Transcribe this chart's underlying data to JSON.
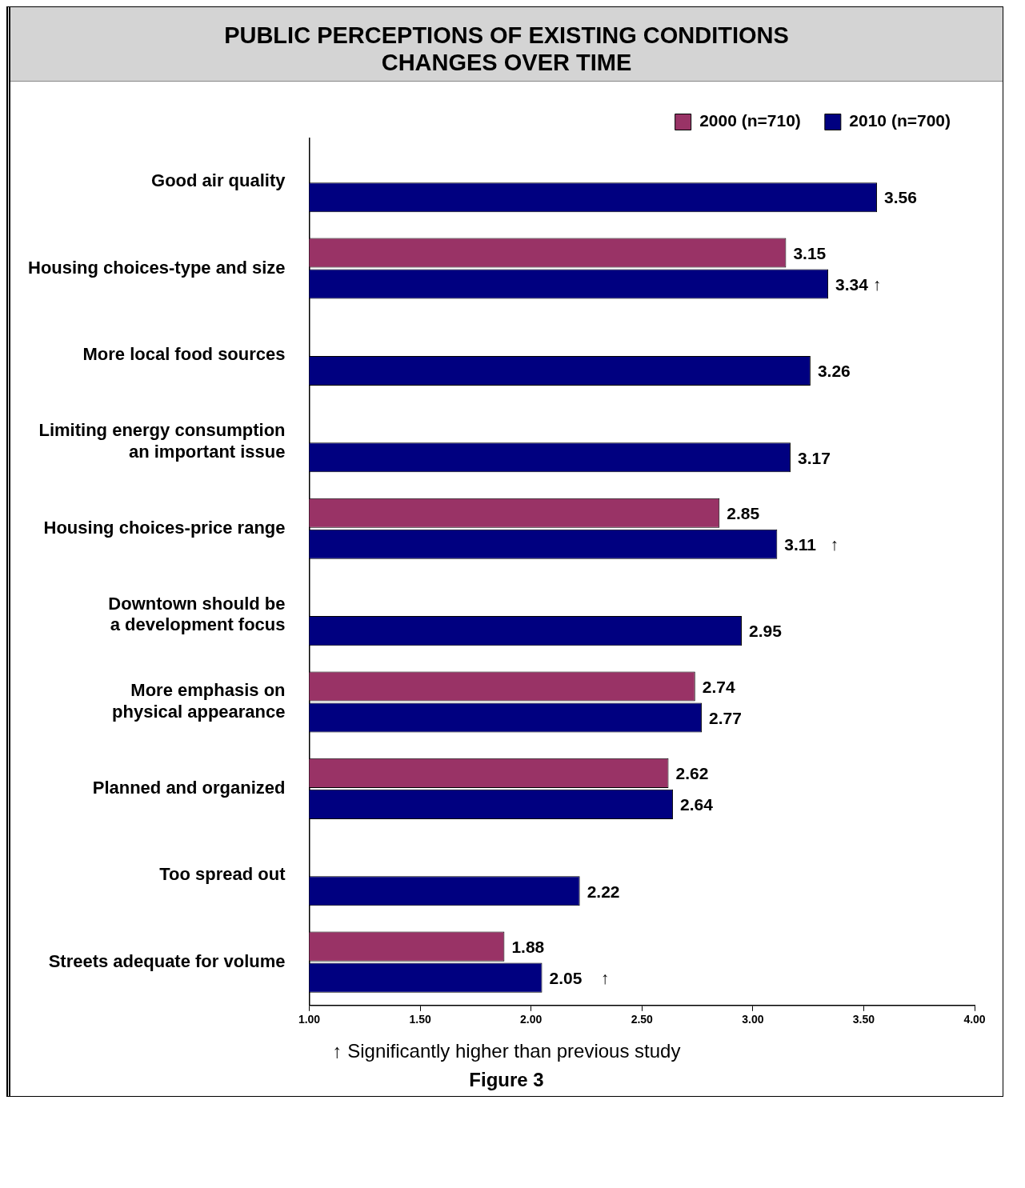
{
  "chart_data": {
    "type": "bar",
    "orientation": "horizontal",
    "title": "PUBLIC PERCEPTIONS OF EXISTING CONDITIONS\nCHANGES OVER TIME",
    "categories": [
      "Good air quality",
      "Housing choices-type and size",
      "More local food sources",
      "Limiting energy consumption\nan important issue",
      "Housing choices-price range",
      "Downtown should be\na development focus",
      "More emphasis on\nphysical appearance",
      "Planned and organized",
      "Too spread out",
      "Streets adequate for volume"
    ],
    "series": [
      {
        "name": "2000 (n=710)",
        "color": "#993366",
        "values": [
          null,
          3.15,
          null,
          null,
          2.85,
          null,
          2.74,
          2.62,
          null,
          1.88
        ],
        "value_labels": [
          null,
          "3.15",
          null,
          null,
          "2.85",
          null,
          "2.74",
          "2.62",
          null,
          "1.88"
        ]
      },
      {
        "name": "2010 (n=700)",
        "color": "#000080",
        "values": [
          3.56,
          3.34,
          3.26,
          3.17,
          3.11,
          2.95,
          2.77,
          2.64,
          2.22,
          2.05
        ],
        "value_labels": [
          "3.56",
          "3.34 ↑",
          "3.26",
          "3.17",
          "3.11   ↑",
          "2.95",
          "2.77",
          "2.64",
          "2.22",
          "2.05    ↑"
        ]
      }
    ],
    "xlim": [
      1,
      4
    ],
    "xticks": [
      {
        "value": 1,
        "label": "1.00"
      },
      {
        "value": 1.5,
        "label": "1.50"
      },
      {
        "value": 2,
        "label": "2.00"
      },
      {
        "value": 2.5,
        "label": "2.50"
      },
      {
        "value": 3,
        "label": "3.00"
      },
      {
        "value": 3.5,
        "label": "3.50"
      },
      {
        "value": 4,
        "label": "4.00"
      }
    ],
    "legend": "top right",
    "grid": false,
    "annotations": [
      "↑ Significantly higher than previous study",
      "Figure 3"
    ]
  }
}
